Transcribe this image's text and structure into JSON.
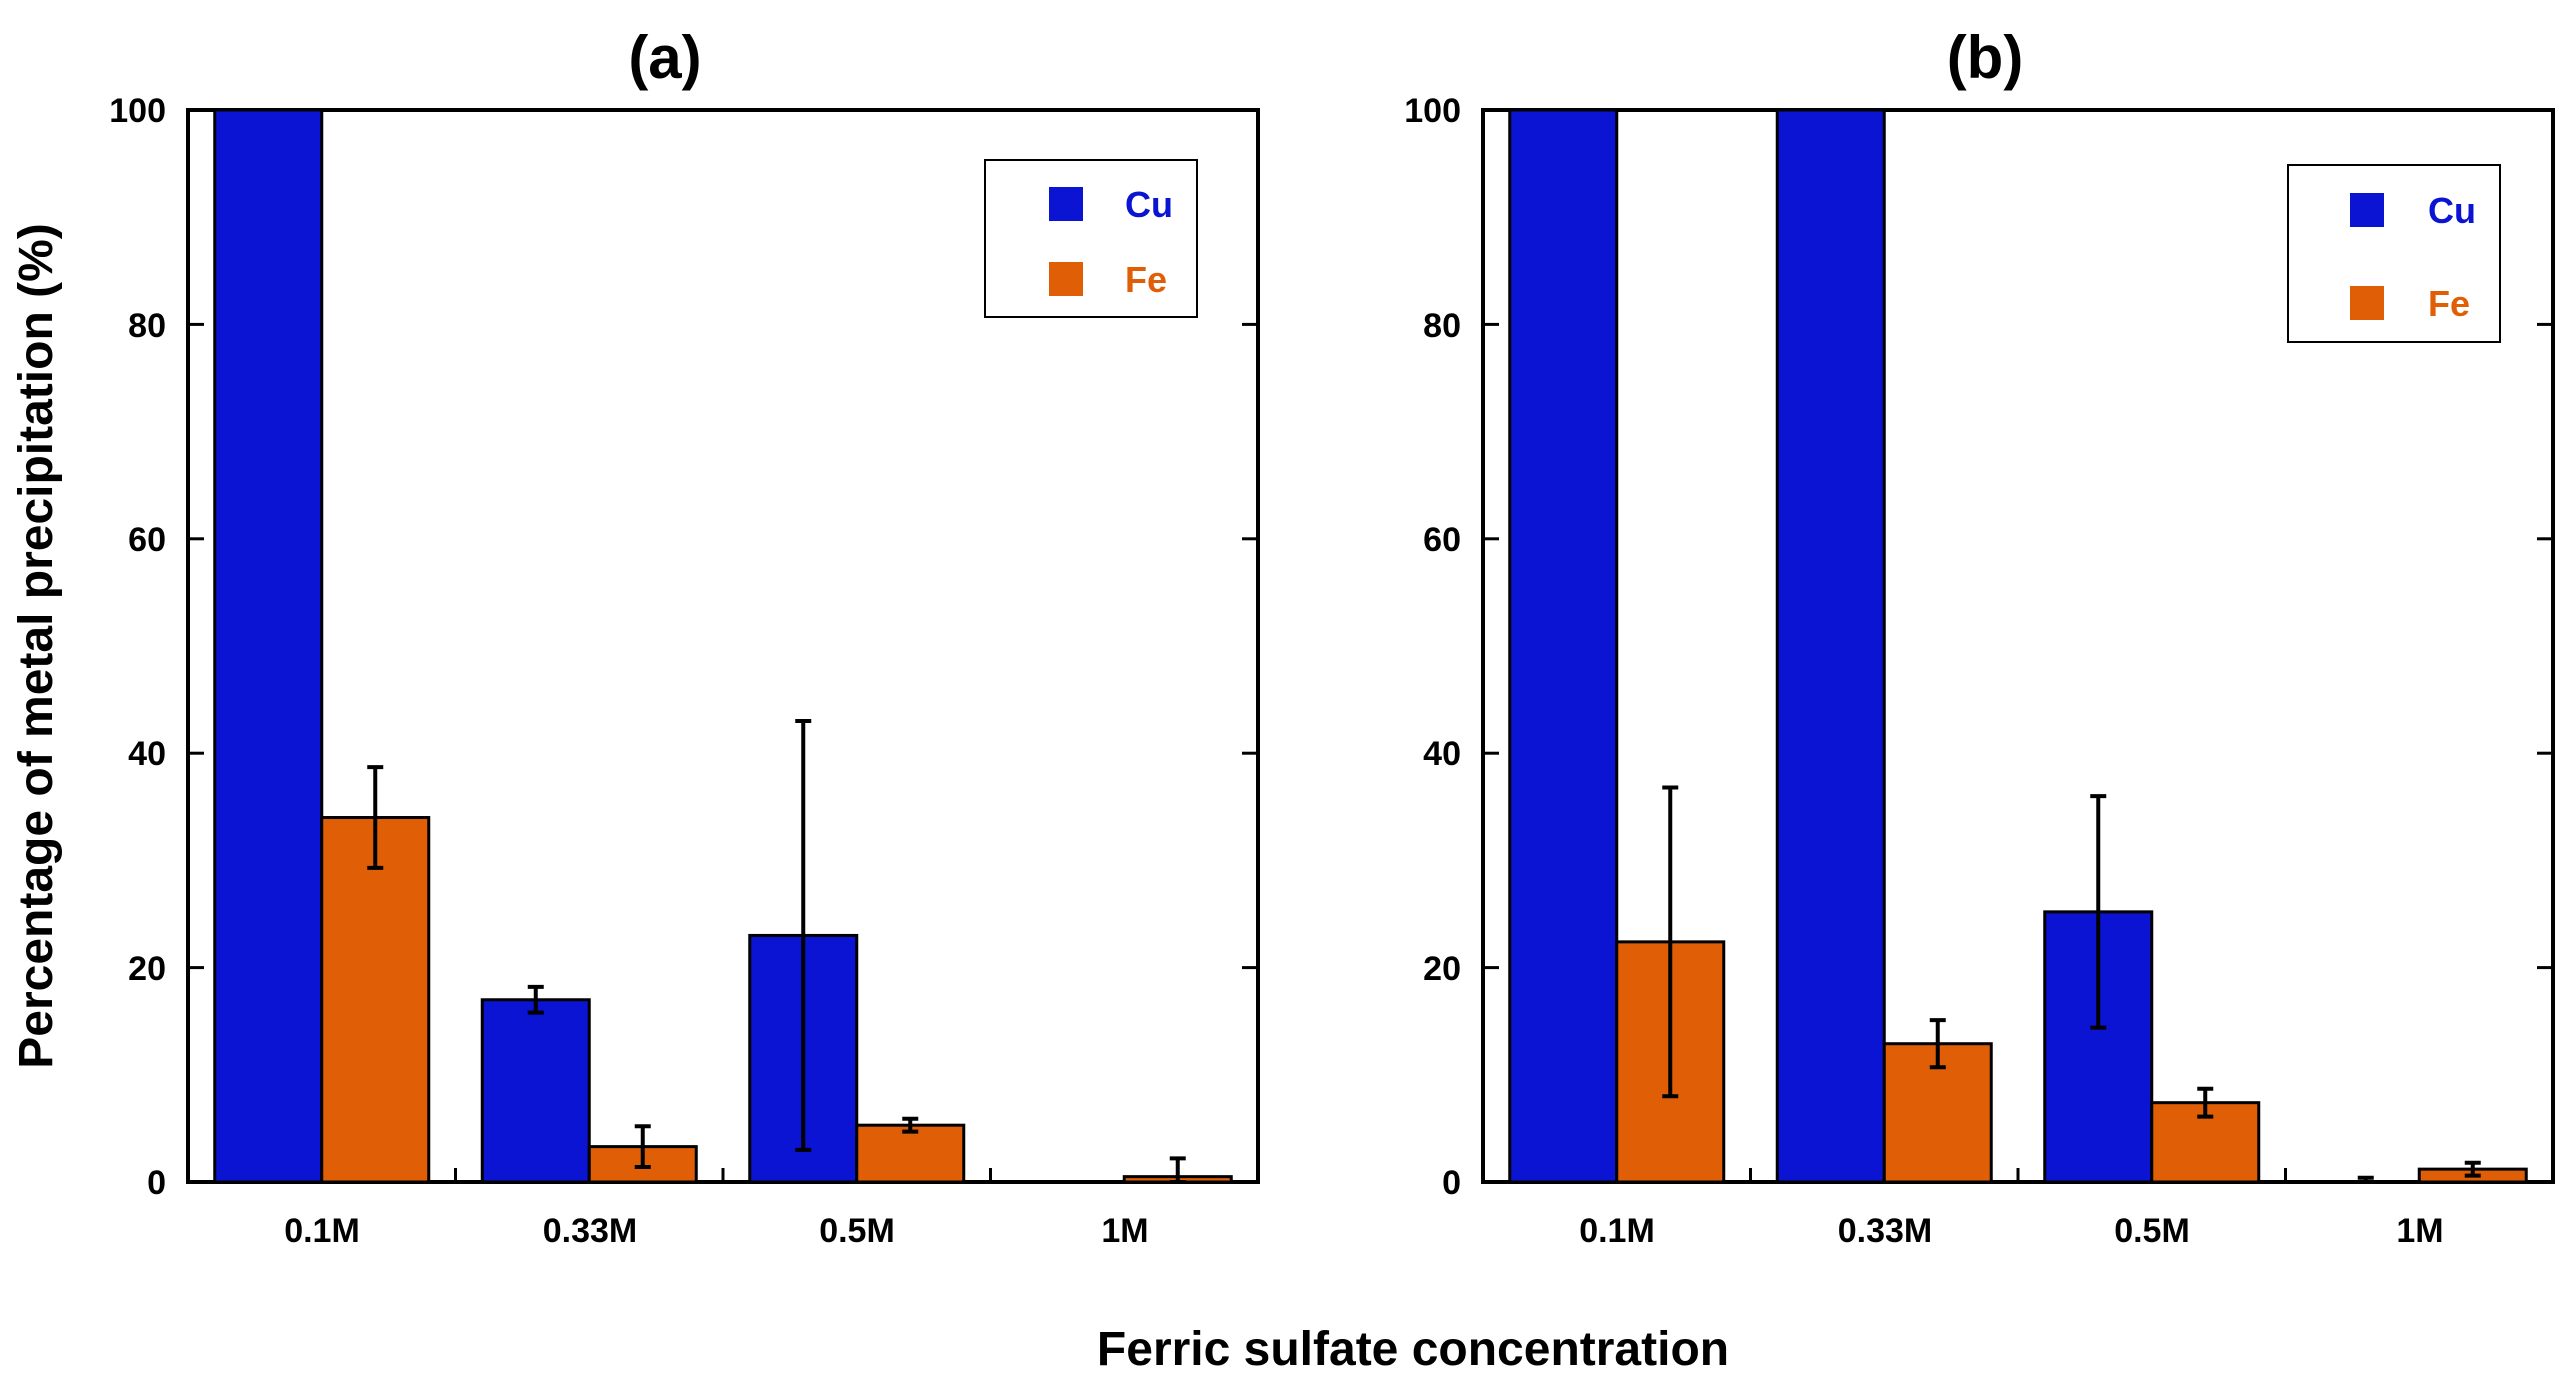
{
  "xlabel": "Ferric sulfate concentration",
  "ylabel": "Percentage of metal precipitation (%)",
  "colors": {
    "cu": "#0a14d2",
    "fe": "#e05e05",
    "axis": "#000000"
  },
  "chart_data": [
    {
      "type": "bar",
      "title": "(a)",
      "categories": [
        "0.1M",
        "0.33M",
        "0.5M",
        "1M"
      ],
      "ylim": [
        0,
        100
      ],
      "yticks": [
        "0",
        "20",
        "40",
        "60",
        "80",
        "100"
      ],
      "legend": "top-right",
      "series": [
        {
          "name": "Cu",
          "values": [
            100,
            17,
            23,
            0
          ],
          "errors": [
            0,
            1.2,
            20,
            0
          ]
        },
        {
          "name": "Fe",
          "values": [
            34,
            3.3,
            5.3,
            0.5
          ],
          "errors": [
            4.7,
            1.9,
            0.6,
            1.7
          ]
        }
      ]
    },
    {
      "type": "bar",
      "title": "(b)",
      "categories": [
        "0.1M",
        "0.33M",
        "0.5M",
        "1M"
      ],
      "ylim": [
        0,
        100
      ],
      "yticks": [
        "0",
        "20",
        "40",
        "60",
        "80",
        "100"
      ],
      "legend": "top-right",
      "series": [
        {
          "name": "Cu",
          "values": [
            100,
            100,
            25.2,
            0
          ],
          "errors": [
            0,
            0,
            10.8,
            0.4
          ]
        },
        {
          "name": "Fe",
          "values": [
            22.4,
            12.9,
            7.4,
            1.2
          ],
          "errors": [
            14.4,
            2.2,
            1.3,
            0.6
          ]
        }
      ]
    }
  ]
}
